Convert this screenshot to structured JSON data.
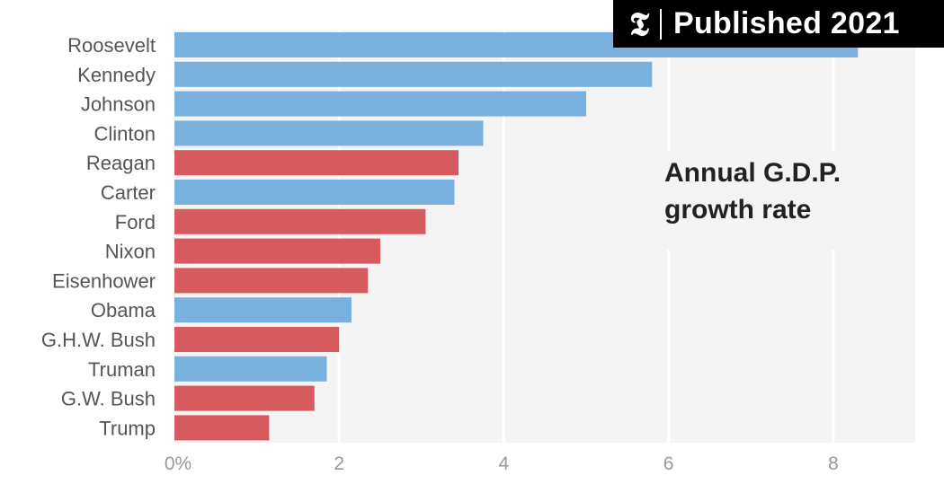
{
  "badge": {
    "logo": "𝕿",
    "text": "Published 2021"
  },
  "chart_data": {
    "type": "bar",
    "orientation": "horizontal",
    "title": "Annual G.D.P. growth rate",
    "title_lines": [
      "Annual G.D.P.",
      "growth rate"
    ],
    "categories": [
      "Roosevelt",
      "Kennedy",
      "Johnson",
      "Clinton",
      "Reagan",
      "Carter",
      "Ford",
      "Nixon",
      "Eisenhower",
      "Obama",
      "G.H.W. Bush",
      "Truman",
      "G.W. Bush",
      "Trump"
    ],
    "values": [
      8.3,
      5.8,
      5.0,
      3.75,
      3.45,
      3.4,
      3.05,
      2.5,
      2.35,
      2.15,
      2.0,
      1.85,
      1.7,
      1.15
    ],
    "party": [
      "D",
      "D",
      "D",
      "D",
      "R",
      "D",
      "R",
      "R",
      "R",
      "D",
      "R",
      "D",
      "R",
      "R"
    ],
    "colors": {
      "D": "#79b0de",
      "R": "#d75a5e",
      "panel": "#f4f4f4",
      "grid": "#ffffff"
    },
    "xlim": [
      0,
      9
    ],
    "xticks": [
      0,
      2,
      4,
      6,
      8
    ],
    "xtick_labels": [
      "0%",
      "2",
      "4",
      "6",
      "8"
    ],
    "xlabel": "",
    "ylabel": "",
    "grid": true
  }
}
